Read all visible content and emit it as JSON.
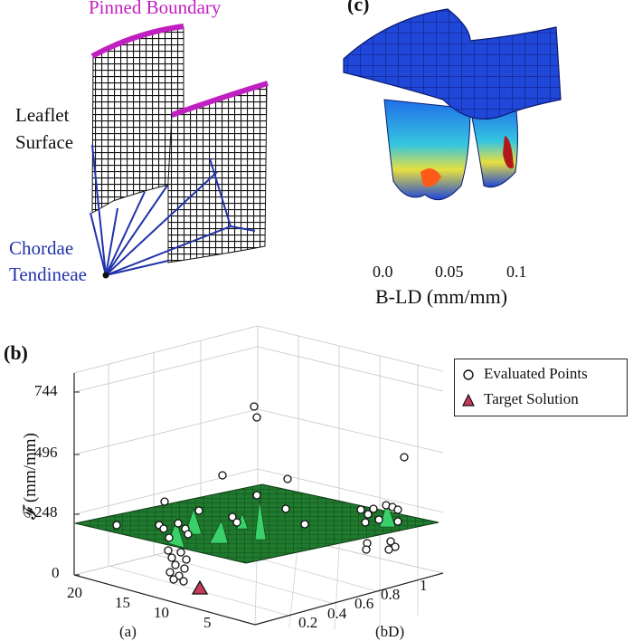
{
  "panel_a": {
    "pinned_boundary": "Pinned Boundary",
    "leaflet_surface_line1": "Leaflet",
    "leaflet_surface_line2": "Surface",
    "chordae_line1": "Chordae",
    "chordae_line2": "Tendineae"
  },
  "panel_c": {
    "panel_letter": "(c)",
    "colorbar_ticks": [
      "0.0",
      "0.05",
      "0.1"
    ],
    "colorbar_label": "B-LD (mm/mm)"
  },
  "panel_b": {
    "panel_letter": "(b)",
    "z_axis_label": "𝓕 (mm/mm)",
    "z_ticks": [
      "0",
      "248",
      "496",
      "744"
    ],
    "left_ticks": [
      "20",
      "15",
      "10",
      "5"
    ],
    "right_ticks": [
      "0.2",
      "0.4",
      "0.6",
      "0.8",
      "1"
    ],
    "left_axis_label": "(a)",
    "right_axis_label": "(bD)",
    "legend": {
      "evaluated": "Evaluated Points",
      "target": "Target Solution"
    }
  },
  "colors": {
    "pinned": "#c020c0",
    "chordae": "#2233aa",
    "surface_green": "#1f7a2e",
    "target_marker": "#c83a5a"
  }
}
